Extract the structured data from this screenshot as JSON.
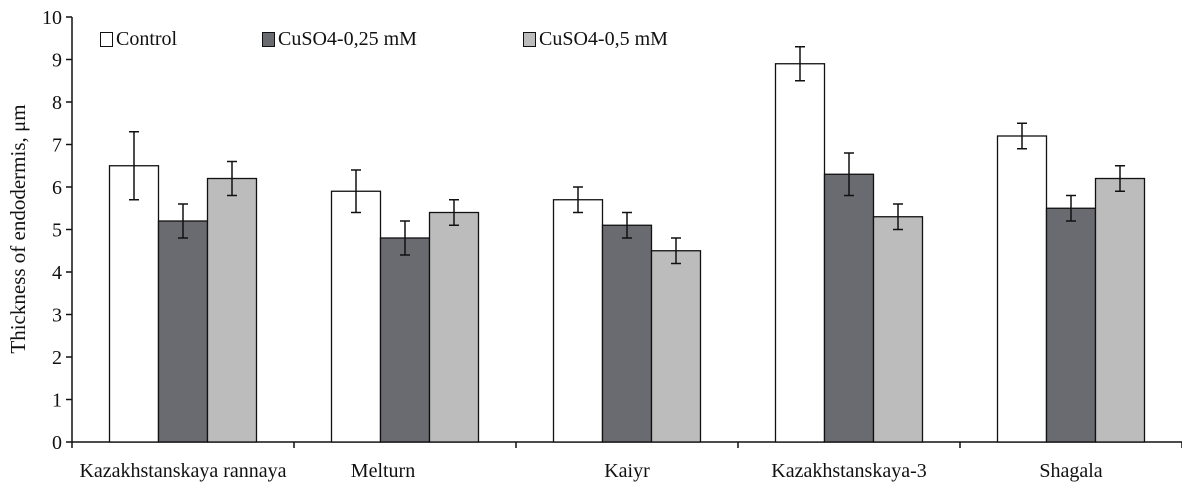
{
  "chart_data": {
    "type": "bar",
    "title": "",
    "xlabel": "",
    "ylabel": "Thickness of endodermis, μm",
    "ylim": [
      0,
      10
    ],
    "yticks": [
      0,
      1,
      2,
      3,
      4,
      5,
      6,
      7,
      8,
      9,
      10
    ],
    "grid": false,
    "legend_position": "top-left",
    "categories": [
      "Kazakhstanskaya rannaya",
      "Melturn",
      "Kaiyr",
      "Kazakhstanskaya-3",
      "Shagala"
    ],
    "series": [
      {
        "name": "Control",
        "color": "#ffffff",
        "values": [
          6.5,
          5.9,
          5.7,
          8.9,
          7.2
        ],
        "errors": [
          0.8,
          0.5,
          0.3,
          0.4,
          0.3
        ]
      },
      {
        "name": "CuSO4-0,25 mM",
        "color": "#696b70",
        "values": [
          5.2,
          4.8,
          5.1,
          6.3,
          5.5
        ],
        "errors": [
          0.4,
          0.4,
          0.3,
          0.5,
          0.3
        ]
      },
      {
        "name": "CuSO4-0,5 mM",
        "color": "#bcbcbc",
        "values": [
          6.2,
          5.4,
          4.5,
          5.3,
          6.2
        ],
        "errors": [
          0.4,
          0.3,
          0.3,
          0.3,
          0.3
        ]
      }
    ]
  }
}
